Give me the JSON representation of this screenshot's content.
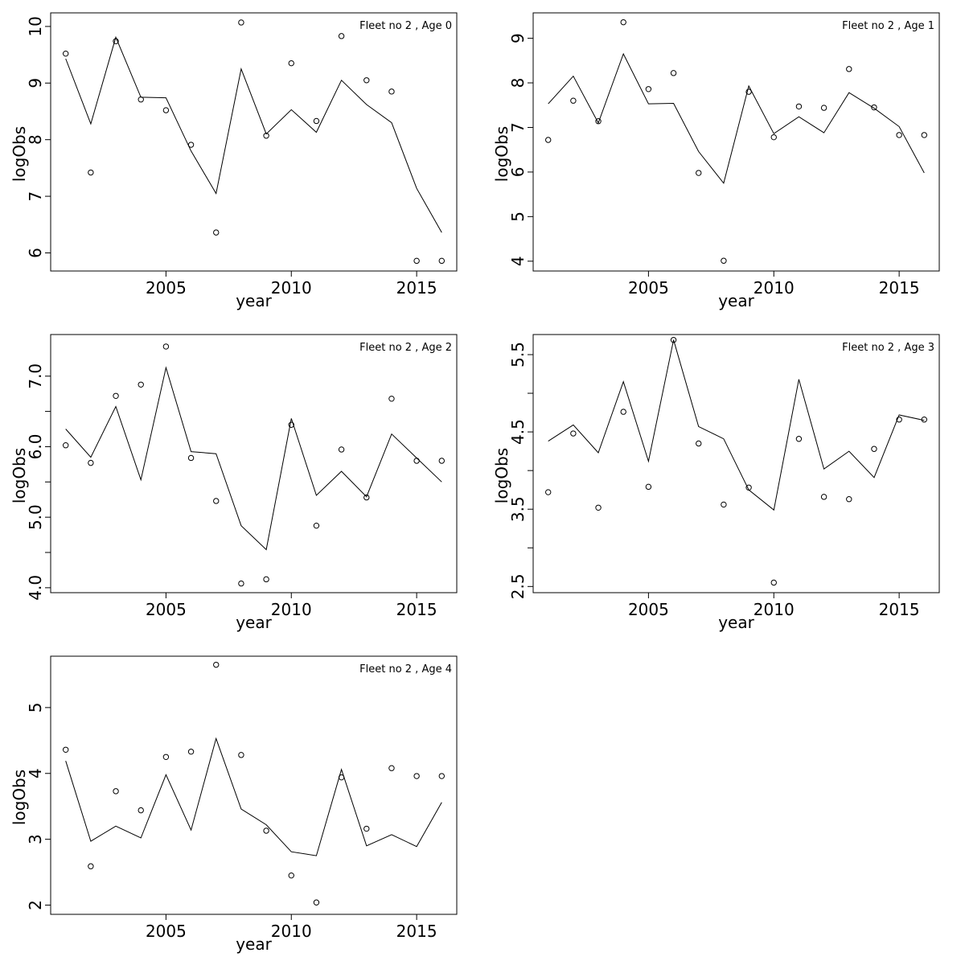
{
  "chart_data": [
    {
      "type": "line",
      "title": "Fleet no 2 , Age 0",
      "xlabel": "year",
      "ylabel": "logObs",
      "xlim": [
        2000.4,
        2016.6
      ],
      "ylim": [
        5.68,
        10.24
      ],
      "x_ticks": [
        2005,
        2010,
        2015
      ],
      "y_ticks": [
        6,
        7,
        8,
        9,
        10
      ],
      "y_tick_labels": [
        "6",
        "7",
        "8",
        "9",
        "10"
      ],
      "x": [
        2001,
        2002,
        2003,
        2004,
        2005,
        2006,
        2007,
        2008,
        2009,
        2010,
        2011,
        2012,
        2013,
        2014,
        2015,
        2016
      ],
      "series": [
        {
          "role": "observed",
          "values": [
            9.52,
            7.42,
            9.74,
            8.71,
            8.52,
            7.91,
            6.36,
            10.07,
            8.07,
            9.35,
            8.33,
            9.83,
            9.05,
            8.85,
            5.86,
            5.86
          ]
        },
        {
          "role": "fitted",
          "values": [
            9.43,
            8.28,
            9.81,
            8.75,
            8.74,
            7.8,
            7.05,
            9.25,
            8.1,
            8.53,
            8.13,
            9.05,
            8.62,
            8.3,
            7.14,
            6.36
          ]
        }
      ]
    },
    {
      "type": "line",
      "title": "Fleet no 2 , Age 1",
      "xlabel": "year",
      "ylabel": "logObs",
      "xlim": [
        2000.4,
        2016.6
      ],
      "ylim": [
        3.78,
        9.57
      ],
      "x_ticks": [
        2005,
        2010,
        2015
      ],
      "y_ticks": [
        4,
        5,
        6,
        7,
        8,
        9
      ],
      "y_tick_labels": [
        "4",
        "5",
        "6",
        "7",
        "8",
        "9"
      ],
      "x": [
        2001,
        2002,
        2003,
        2004,
        2005,
        2006,
        2007,
        2008,
        2009,
        2010,
        2011,
        2012,
        2013,
        2014,
        2015,
        2016
      ],
      "series": [
        {
          "role": "observed",
          "values": [
            6.72,
            7.6,
            7.14,
            9.36,
            7.86,
            8.22,
            5.98,
            4.01,
            7.8,
            6.78,
            7.47,
            7.44,
            8.31,
            7.45,
            6.83,
            6.83
          ]
        },
        {
          "role": "fitted",
          "values": [
            7.53,
            8.15,
            7.1,
            8.65,
            7.53,
            7.54,
            6.46,
            5.75,
            7.93,
            6.86,
            7.24,
            6.88,
            7.78,
            7.43,
            7.02,
            5.98
          ]
        }
      ]
    },
    {
      "type": "line",
      "title": "Fleet no 2 , Age 2",
      "xlabel": "year",
      "ylabel": "logObs",
      "xlim": [
        2000.4,
        2016.6
      ],
      "ylim": [
        3.93,
        7.59
      ],
      "x_ticks": [
        2005,
        2010,
        2015
      ],
      "y_ticks": [
        4.0,
        4.5,
        5.0,
        5.5,
        6.0,
        6.5,
        7.0
      ],
      "y_tick_labels": [
        "4.0",
        "",
        "5.0",
        "",
        "6.0",
        "",
        "7.0"
      ],
      "x": [
        2001,
        2002,
        2003,
        2004,
        2005,
        2006,
        2007,
        2008,
        2009,
        2010,
        2011,
        2012,
        2013,
        2014,
        2015,
        2016
      ],
      "series": [
        {
          "role": "observed",
          "values": [
            6.02,
            5.77,
            6.72,
            6.88,
            7.42,
            5.84,
            5.23,
            4.06,
            4.12,
            6.31,
            4.88,
            5.96,
            5.28,
            6.68,
            5.8,
            5.8
          ]
        },
        {
          "role": "fitted",
          "values": [
            6.25,
            5.85,
            6.57,
            5.53,
            7.12,
            5.93,
            5.9,
            4.88,
            4.54,
            6.4,
            5.31,
            5.65,
            5.29,
            6.18,
            5.84,
            5.5
          ]
        }
      ]
    },
    {
      "type": "line",
      "title": "Fleet no 2 , Age 3",
      "xlabel": "year",
      "ylabel": "logObs",
      "xlim": [
        2000.4,
        2016.6
      ],
      "ylim": [
        2.42,
        5.76
      ],
      "x_ticks": [
        2005,
        2010,
        2015
      ],
      "y_ticks": [
        2.5,
        3.0,
        3.5,
        4.0,
        4.5,
        5.0,
        5.5
      ],
      "y_tick_labels": [
        "2.5",
        "",
        "3.5",
        "",
        "4.5",
        "",
        "5.5"
      ],
      "x": [
        2001,
        2002,
        2003,
        2004,
        2005,
        2006,
        2007,
        2008,
        2009,
        2010,
        2011,
        2012,
        2013,
        2014,
        2015,
        2016
      ],
      "series": [
        {
          "role": "observed",
          "values": [
            3.72,
            4.48,
            3.52,
            4.76,
            3.79,
            5.69,
            4.35,
            3.56,
            3.78,
            2.55,
            4.41,
            3.66,
            3.63,
            4.28,
            4.66,
            4.66
          ]
        },
        {
          "role": "fitted",
          "values": [
            4.38,
            4.59,
            4.23,
            5.15,
            4.12,
            5.69,
            4.57,
            4.41,
            3.75,
            3.49,
            5.18,
            4.02,
            4.25,
            3.91,
            4.72,
            4.65
          ]
        }
      ]
    },
    {
      "type": "line",
      "title": "Fleet no 2 , Age 4",
      "xlabel": "year",
      "ylabel": "logObs",
      "xlim": [
        2000.4,
        2016.6
      ],
      "ylim": [
        1.86,
        5.78
      ],
      "x_ticks": [
        2005,
        2010,
        2015
      ],
      "y_ticks": [
        2,
        3,
        4,
        5
      ],
      "y_tick_labels": [
        "2",
        "3",
        "4",
        "5"
      ],
      "x": [
        2001,
        2002,
        2003,
        2004,
        2005,
        2006,
        2007,
        2008,
        2009,
        2010,
        2011,
        2012,
        2013,
        2014,
        2015,
        2016
      ],
      "series": [
        {
          "role": "observed",
          "values": [
            4.36,
            2.59,
            3.73,
            3.44,
            4.25,
            4.33,
            5.65,
            4.28,
            3.13,
            2.45,
            2.04,
            3.94,
            3.16,
            4.08,
            3.96,
            3.96
          ]
        },
        {
          "role": "fitted",
          "values": [
            4.19,
            2.97,
            3.2,
            3.02,
            3.98,
            3.14,
            4.53,
            3.46,
            3.22,
            2.81,
            2.75,
            4.06,
            2.9,
            3.07,
            2.89,
            3.56
          ]
        }
      ]
    }
  ]
}
